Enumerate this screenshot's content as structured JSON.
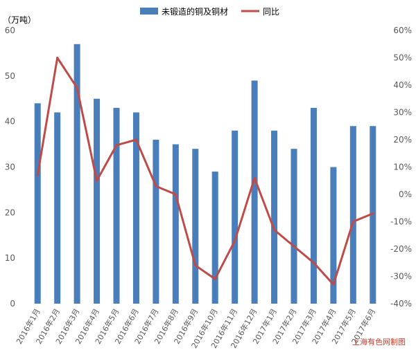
{
  "chart_data": {
    "type": "bar",
    "unit_label": "（万吨）",
    "credit": "上海有色网制图",
    "categories": [
      "2016年1月",
      "2016年2月",
      "2016年3月",
      "2016年4月",
      "2016年5月",
      "2016年6月",
      "2016年7月",
      "2016年8月",
      "2016年9月",
      "2016年10月",
      "2016年11月",
      "2016年12月",
      "2017年1月",
      "2017年2月",
      "2017年3月",
      "2017年4月",
      "2017年5月",
      "2017年6月"
    ],
    "series": [
      {
        "name": "未锻造的铜及铜材",
        "type": "bar",
        "axis": "left",
        "color": "#4a7ebb",
        "values": [
          44,
          42,
          57,
          45,
          43,
          42,
          36,
          35,
          34,
          29,
          38,
          49,
          38,
          34,
          43,
          30,
          39,
          39
        ]
      },
      {
        "name": "同比",
        "type": "line",
        "axis": "right",
        "color": "#be4b48",
        "values": [
          7,
          50,
          39,
          5,
          18,
          20,
          3,
          0,
          -26,
          -31,
          -17,
          6,
          -13,
          -19,
          -25,
          -33,
          -10,
          -7
        ]
      }
    ],
    "ylim_left": [
      0,
      60
    ],
    "yticks_left": [
      "0",
      "10",
      "20",
      "30",
      "40",
      "50",
      "60"
    ],
    "ylim_right": [
      -40,
      60
    ],
    "yticks_right": [
      "-40%",
      "-30%",
      "-20%",
      "-10%",
      "0%",
      "10%",
      "20%",
      "30%",
      "40%",
      "50%",
      "60%"
    ],
    "legend_position": "top",
    "grid": false
  }
}
